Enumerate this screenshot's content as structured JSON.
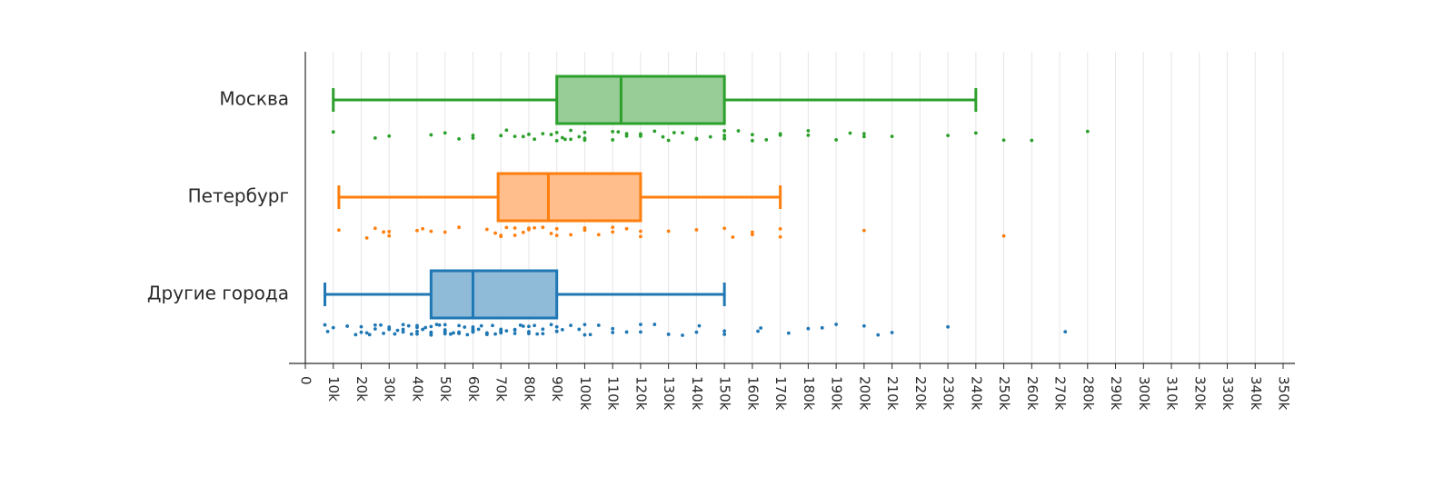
{
  "chart_data": {
    "type": "box",
    "orientation": "horizontal",
    "x_ticks": [
      "0",
      "10k",
      "20k",
      "30k",
      "40k",
      "50k",
      "60k",
      "70k",
      "80k",
      "90k",
      "100k",
      "110k",
      "120k",
      "130k",
      "140k",
      "150k",
      "160k",
      "170k",
      "180k",
      "190k",
      "200k",
      "210k",
      "220k",
      "230k",
      "240k",
      "250k",
      "260k",
      "270k",
      "280k",
      "290k",
      "300k",
      "310k",
      "320k",
      "330k",
      "340k",
      "350k"
    ],
    "xlim": [
      0,
      350000
    ],
    "grid": true,
    "series": [
      {
        "name": "Москва",
        "color": "#2ca02c",
        "fill": "#98cd98",
        "whisker_low": 10000,
        "q1": 90000,
        "median": 113000,
        "q3": 150000,
        "whisker_high": 240000,
        "points": [
          10000,
          25000,
          30000,
          45000,
          50000,
          55000,
          60000,
          60000,
          70000,
          70000,
          72000,
          75000,
          78000,
          80000,
          82000,
          85000,
          88000,
          90000,
          90000,
          92000,
          93000,
          95000,
          95000,
          98000,
          100000,
          100000,
          100000,
          110000,
          110000,
          112000,
          115000,
          115000,
          120000,
          120000,
          120000,
          125000,
          128000,
          130000,
          132000,
          135000,
          140000,
          140000,
          145000,
          150000,
          150000,
          150000,
          150000,
          155000,
          160000,
          160000,
          165000,
          170000,
          170000,
          180000,
          180000,
          190000,
          195000,
          200000,
          200000,
          210000,
          230000,
          240000,
          250000,
          260000,
          280000
        ]
      },
      {
        "name": "Петербург",
        "color": "#ff7f0e",
        "fill": "#ffbe8b",
        "whisker_low": 12000,
        "q1": 69000,
        "median": 87000,
        "q3": 120000,
        "whisker_high": 170000,
        "points": [
          12000,
          22000,
          25000,
          28000,
          30000,
          30000,
          40000,
          42000,
          45000,
          50000,
          55000,
          65000,
          68000,
          70000,
          70000,
          72000,
          75000,
          75000,
          78000,
          80000,
          80000,
          82000,
          85000,
          88000,
          90000,
          90000,
          95000,
          100000,
          100000,
          105000,
          110000,
          110000,
          115000,
          120000,
          120000,
          130000,
          140000,
          150000,
          153000,
          160000,
          160000,
          170000,
          170000,
          200000,
          250000
        ]
      },
      {
        "name": "Другие города",
        "color": "#1f77b4",
        "fill": "#8fbbd9",
        "whisker_low": 7000,
        "q1": 45000,
        "median": 60000,
        "q3": 90000,
        "whisker_high": 150000,
        "points": [
          7000,
          8000,
          10000,
          15000,
          18000,
          20000,
          20000,
          22000,
          23000,
          25000,
          25000,
          27000,
          28000,
          30000,
          30000,
          30000,
          32000,
          33000,
          35000,
          35000,
          35000,
          37000,
          38000,
          40000,
          40000,
          40000,
          40000,
          42000,
          43000,
          45000,
          45000,
          45000,
          45000,
          47000,
          48000,
          50000,
          50000,
          50000,
          50000,
          50000,
          52000,
          53000,
          55000,
          55000,
          55000,
          55000,
          57000,
          58000,
          60000,
          60000,
          60000,
          60000,
          60000,
          62000,
          63000,
          65000,
          65000,
          65000,
          67000,
          68000,
          70000,
          70000,
          70000,
          70000,
          72000,
          75000,
          75000,
          75000,
          77000,
          78000,
          80000,
          80000,
          80000,
          82000,
          83000,
          85000,
          85000,
          88000,
          90000,
          90000,
          90000,
          92000,
          95000,
          98000,
          100000,
          100000,
          102000,
          105000,
          110000,
          110000,
          115000,
          120000,
          120000,
          125000,
          130000,
          135000,
          140000,
          141000,
          150000,
          150000,
          162000,
          163000,
          173000,
          180000,
          185000,
          190000,
          200000,
          205000,
          210000,
          230000,
          272000
        ]
      }
    ]
  }
}
